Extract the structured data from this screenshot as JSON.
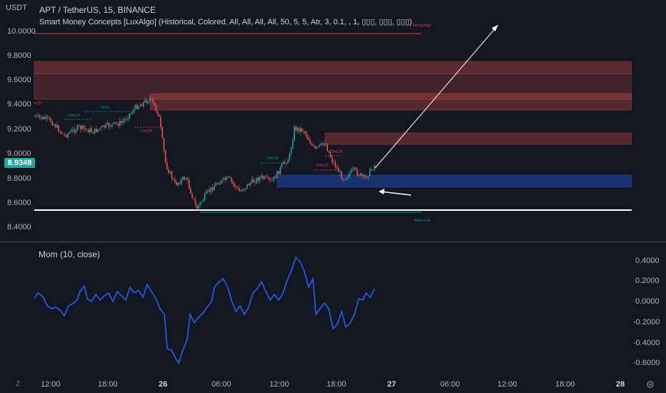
{
  "header": {
    "currency": "USDT",
    "symbol_line": "APT / TetherUS, 15, BINANCE",
    "indicator_line": "Smart Money Concepts [LuxAlgo] (Historical, Colored, All, All, All, All, 50, 5, 5, Atr, 3, 0.1, , 1, ▯▯▯, ▯▯▯, ▯▯▯)"
  },
  "price_axis": {
    "ticks": [
      "10.0000",
      "9.8000",
      "9.6000",
      "9.4000",
      "9.2000",
      "9.0000",
      "8.8000",
      "8.6000",
      "8.4000"
    ],
    "current_price": "8.9348",
    "current_price_color": "#26a69a"
  },
  "chart_labels": {
    "strong_high": "Strong High",
    "week_low": "Week Low",
    "eqh": "EQH",
    "choch_1": "CHoCH",
    "bos": "BOS",
    "choch_2": "CHoCH",
    "choch_3": "CHoCH",
    "choch_4": "CHoCH",
    "choch_5": "CHoCH"
  },
  "oscillator": {
    "title": "Mom (10, close)",
    "ticks": [
      "0.4000",
      "0.2000",
      "0.0000",
      "-0.2000",
      "-0.4000",
      "-0.6000"
    ],
    "line_color": "#2962ff"
  },
  "time_axis": {
    "labels": [
      "12:00",
      "18:00",
      "26",
      "06:00",
      "12:00",
      "18:00",
      "27",
      "06:00",
      "12:00",
      "18:00",
      "28"
    ]
  },
  "toolbar": {
    "timezone_icon": "Z",
    "settings_icon": "gear-icon"
  },
  "colors": {
    "background": "#131722",
    "up_candle": "#26a69a",
    "down_candle": "#ef5350",
    "bearish_zone": "#ef5350",
    "bullish_zone": "#2962ff",
    "strong_high_line": "#f23645",
    "week_low_line": "#089981"
  }
}
